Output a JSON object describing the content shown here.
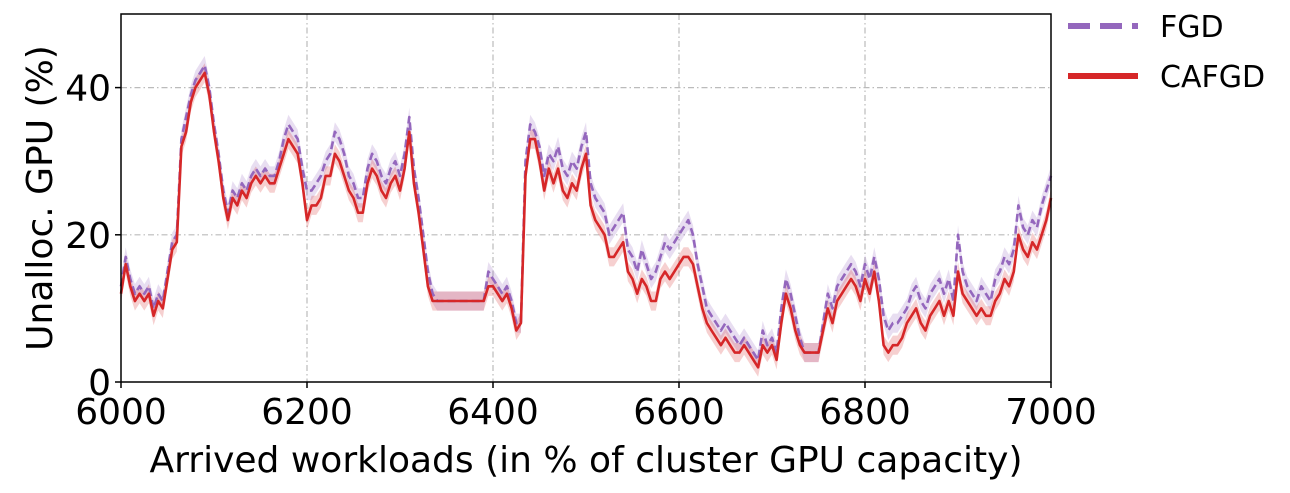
{
  "chart_data": {
    "type": "line",
    "xlabel": "Arrived workloads (in % of cluster GPU capacity)",
    "ylabel": "Unalloc. GPU (%)",
    "xlim": [
      6000,
      7000
    ],
    "ylim": [
      0,
      50
    ],
    "xticks": [
      "6000",
      "6200",
      "6400",
      "6600",
      "6800",
      "7000"
    ],
    "yticks": [
      "0",
      "20",
      "40"
    ],
    "grid": true,
    "legend_placement": "outside-top-right",
    "series": [
      {
        "name": "FGD",
        "color": "#9467bd",
        "style": "dashed",
        "x": [
          6000,
          6005,
          6010,
          6015,
          6020,
          6025,
          6030,
          6035,
          6040,
          6045,
          6050,
          6055,
          6060,
          6065,
          6070,
          6075,
          6080,
          6085,
          6090,
          6095,
          6100,
          6105,
          6110,
          6115,
          6120,
          6125,
          6130,
          6135,
          6140,
          6145,
          6150,
          6155,
          6160,
          6165,
          6170,
          6175,
          6180,
          6185,
          6190,
          6195,
          6200,
          6205,
          6210,
          6215,
          6220,
          6225,
          6230,
          6235,
          6240,
          6245,
          6250,
          6255,
          6260,
          6265,
          6270,
          6275,
          6280,
          6285,
          6290,
          6295,
          6300,
          6305,
          6310,
          6315,
          6320,
          6325,
          6330,
          6335,
          6340,
          6345,
          6350,
          6360,
          6370,
          6380,
          6390,
          6395,
          6400,
          6405,
          6410,
          6415,
          6420,
          6425,
          6430,
          6435,
          6440,
          6445,
          6450,
          6455,
          6460,
          6465,
          6470,
          6475,
          6480,
          6485,
          6490,
          6495,
          6500,
          6505,
          6510,
          6515,
          6520,
          6525,
          6530,
          6535,
          6540,
          6545,
          6550,
          6555,
          6560,
          6565,
          6570,
          6575,
          6580,
          6585,
          6590,
          6595,
          6600,
          6605,
          6610,
          6615,
          6620,
          6625,
          6630,
          6635,
          6640,
          6645,
          6650,
          6655,
          6660,
          6665,
          6670,
          6675,
          6680,
          6685,
          6690,
          6695,
          6700,
          6705,
          6710,
          6715,
          6720,
          6725,
          6730,
          6735,
          6740,
          6745,
          6750,
          6755,
          6760,
          6765,
          6770,
          6775,
          6780,
          6785,
          6790,
          6795,
          6800,
          6805,
          6810,
          6815,
          6820,
          6825,
          6830,
          6835,
          6840,
          6845,
          6850,
          6855,
          6860,
          6865,
          6870,
          6875,
          6880,
          6885,
          6890,
          6895,
          6900,
          6905,
          6910,
          6915,
          6920,
          6925,
          6930,
          6935,
          6940,
          6945,
          6950,
          6955,
          6960,
          6965,
          6970,
          6975,
          6980,
          6985,
          6990,
          6995,
          7000
        ],
        "values": [
          13,
          17,
          14,
          12,
          13,
          12,
          13,
          10,
          12,
          11,
          15,
          19,
          20,
          33,
          36,
          39,
          41,
          42,
          43,
          40,
          35,
          31,
          26,
          23,
          26,
          25,
          27,
          26,
          28,
          29,
          28,
          29,
          28,
          28,
          30,
          33,
          35,
          34,
          33,
          29,
          26,
          26,
          27,
          28,
          30,
          31,
          34,
          33,
          31,
          28,
          27,
          25,
          25,
          29,
          31,
          30,
          28,
          27,
          29,
          30,
          28,
          31,
          36,
          29,
          25,
          20,
          15,
          12,
          11,
          11,
          11,
          11,
          11,
          11,
          11,
          15,
          14,
          13,
          12,
          13,
          11,
          8,
          8,
          30,
          35,
          34,
          32,
          28,
          31,
          30,
          32,
          29,
          28,
          30,
          29,
          32,
          34,
          27,
          25,
          24,
          23,
          20,
          21,
          22,
          23,
          18,
          17,
          15,
          18,
          16,
          14,
          15,
          17,
          19,
          18,
          19,
          20,
          21,
          22,
          20,
          16,
          13,
          10,
          9,
          8,
          7,
          8,
          7,
          6,
          5,
          6,
          5,
          4,
          3,
          7,
          5,
          6,
          4,
          10,
          14,
          12,
          9,
          6,
          4,
          4,
          4,
          4,
          8,
          12,
          10,
          13,
          14,
          15,
          16,
          15,
          13,
          16,
          14,
          17,
          14,
          9,
          7,
          8,
          8,
          9,
          10,
          12,
          13,
          11,
          10,
          12,
          13,
          14,
          12,
          14,
          11,
          20,
          15,
          13,
          12,
          11,
          13,
          12,
          11,
          14,
          15,
          17,
          16,
          18,
          24,
          21,
          20,
          22,
          21,
          24,
          26,
          28
        ]
      },
      {
        "name": "CAFGD",
        "color": "#d62728",
        "style": "solid",
        "x": [
          6000,
          6005,
          6010,
          6015,
          6020,
          6025,
          6030,
          6035,
          6040,
          6045,
          6050,
          6055,
          6060,
          6065,
          6070,
          6075,
          6080,
          6085,
          6090,
          6095,
          6100,
          6105,
          6110,
          6115,
          6120,
          6125,
          6130,
          6135,
          6140,
          6145,
          6150,
          6155,
          6160,
          6165,
          6170,
          6175,
          6180,
          6185,
          6190,
          6195,
          6200,
          6205,
          6210,
          6215,
          6220,
          6225,
          6230,
          6235,
          6240,
          6245,
          6250,
          6255,
          6260,
          6265,
          6270,
          6275,
          6280,
          6285,
          6290,
          6295,
          6300,
          6305,
          6310,
          6315,
          6320,
          6325,
          6330,
          6335,
          6340,
          6345,
          6350,
          6360,
          6370,
          6380,
          6390,
          6395,
          6400,
          6405,
          6410,
          6415,
          6420,
          6425,
          6430,
          6435,
          6440,
          6445,
          6450,
          6455,
          6460,
          6465,
          6470,
          6475,
          6480,
          6485,
          6490,
          6495,
          6500,
          6505,
          6510,
          6515,
          6520,
          6525,
          6530,
          6535,
          6540,
          6545,
          6550,
          6555,
          6560,
          6565,
          6570,
          6575,
          6580,
          6585,
          6590,
          6595,
          6600,
          6605,
          6610,
          6615,
          6620,
          6625,
          6630,
          6635,
          6640,
          6645,
          6650,
          6655,
          6660,
          6665,
          6670,
          6675,
          6680,
          6685,
          6690,
          6695,
          6700,
          6705,
          6710,
          6715,
          6720,
          6725,
          6730,
          6735,
          6740,
          6745,
          6750,
          6755,
          6760,
          6765,
          6770,
          6775,
          6780,
          6785,
          6790,
          6795,
          6800,
          6805,
          6810,
          6815,
          6820,
          6825,
          6830,
          6835,
          6840,
          6845,
          6850,
          6855,
          6860,
          6865,
          6870,
          6875,
          6880,
          6885,
          6890,
          6895,
          6900,
          6905,
          6910,
          6915,
          6920,
          6925,
          6930,
          6935,
          6940,
          6945,
          6950,
          6955,
          6960,
          6965,
          6970,
          6975,
          6980,
          6985,
          6990,
          6995,
          7000
        ],
        "values": [
          12,
          16,
          13,
          11,
          12,
          11,
          12,
          9,
          11,
          10,
          14,
          18,
          19,
          32,
          34,
          38,
          40,
          41,
          42,
          39,
          34,
          30,
          25,
          22,
          25,
          24,
          26,
          25,
          27,
          28,
          27,
          28,
          27,
          27,
          29,
          31,
          33,
          32,
          31,
          27,
          22,
          24,
          24,
          25,
          28,
          28,
          31,
          30,
          28,
          26,
          25,
          23,
          23,
          27,
          29,
          28,
          26,
          25,
          27,
          28,
          26,
          29,
          34,
          27,
          23,
          18,
          13,
          11,
          11,
          11,
          11,
          11,
          11,
          11,
          11,
          13,
          13,
          12,
          11,
          12,
          10,
          7,
          8,
          28,
          33,
          33,
          30,
          26,
          29,
          27,
          29,
          26,
          25,
          27,
          26,
          29,
          31,
          24,
          22,
          21,
          20,
          17,
          17,
          18,
          19,
          15,
          14,
          12,
          14,
          13,
          11,
          11,
          14,
          15,
          14,
          15,
          16,
          17,
          17,
          16,
          13,
          10,
          8,
          7,
          6,
          5,
          6,
          5,
          4,
          4,
          5,
          4,
          3,
          2,
          5,
          4,
          5,
          3,
          8,
          12,
          10,
          7,
          5,
          4,
          4,
          4,
          4,
          7,
          10,
          8,
          11,
          12,
          13,
          14,
          13,
          11,
          14,
          12,
          15,
          11,
          5,
          4,
          5,
          5,
          6,
          8,
          9,
          10,
          8,
          7,
          9,
          10,
          11,
          9,
          11,
          9,
          15,
          12,
          11,
          10,
          9,
          10,
          9,
          9,
          11,
          12,
          14,
          13,
          15,
          20,
          18,
          17,
          19,
          18,
          20,
          22,
          25
        ]
      }
    ]
  }
}
